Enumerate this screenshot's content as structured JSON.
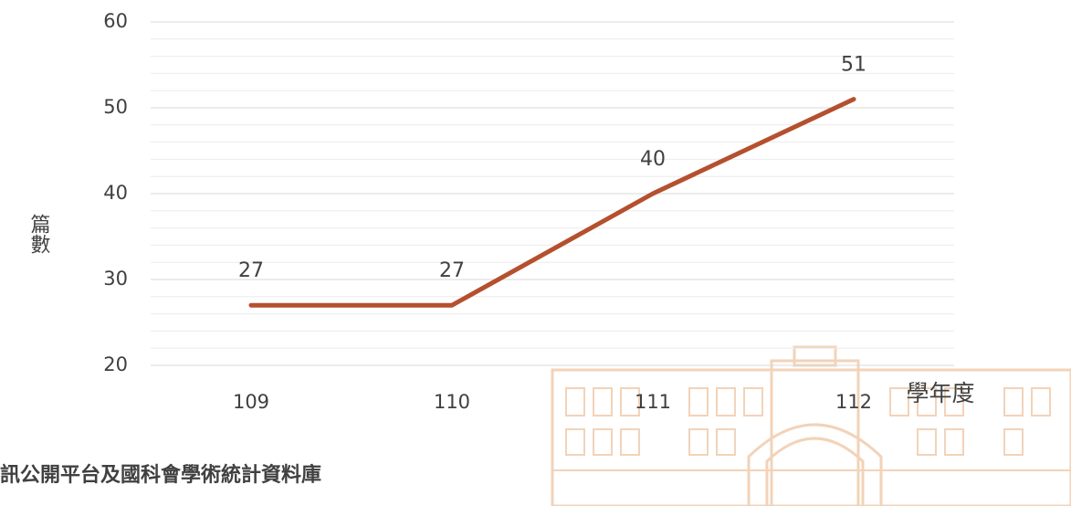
{
  "chart_data": {
    "type": "line",
    "categories": [
      "109",
      "110",
      "111",
      "112"
    ],
    "series": [
      {
        "name": "篇數",
        "color": "#b5502e",
        "values": [
          27,
          27,
          40,
          51
        ]
      }
    ],
    "ylim": [
      20,
      60
    ],
    "yticks": [
      20,
      30,
      40,
      50,
      60
    ],
    "grid": true,
    "y_label": "篇數",
    "x_label": "學年度"
  },
  "footer_text": "訊公開平台及國科會學術統計資料庫"
}
